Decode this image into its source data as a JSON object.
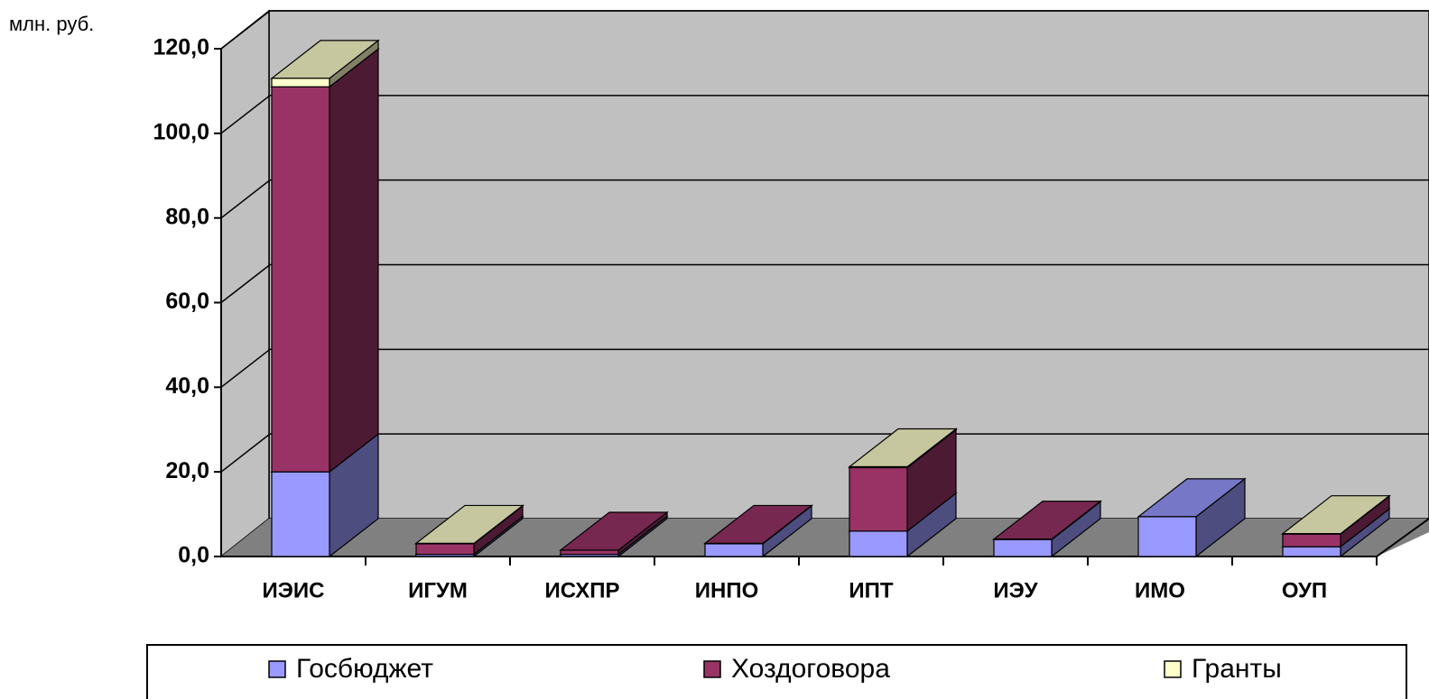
{
  "chart_data": {
    "type": "bar",
    "stacked": true,
    "three_d": true,
    "y_label": "млн. руб.",
    "categories": [
      "ИЭИС",
      "ИГУМ",
      "ИСХПР",
      "ИНПО",
      "ИПТ",
      "ИЭУ",
      "ИМО",
      "ОУП"
    ],
    "series": [
      {
        "name": "Госбюджет",
        "color": "#9999ff",
        "values": [
          20,
          0.5,
          0.5,
          3,
          6,
          4,
          9.4,
          2.3
        ]
      },
      {
        "name": "Хоздоговора",
        "color": "#993366",
        "values": [
          91,
          2.5,
          1,
          0.1,
          15,
          0.1,
          0,
          3
        ]
      },
      {
        "name": "Гранты",
        "color": "#ffffcc",
        "values": [
          2,
          0.1,
          0,
          0,
          0.2,
          0,
          0,
          0.1
        ]
      }
    ],
    "ylim": [
      0,
      120
    ],
    "yticks": [
      {
        "value": 0,
        "label": "0,0"
      },
      {
        "value": 20,
        "label": "20,0"
      },
      {
        "value": 40,
        "label": "40,0"
      },
      {
        "value": 60,
        "label": "60,0"
      },
      {
        "value": 80,
        "label": "80,0"
      },
      {
        "value": 100,
        "label": "100,0"
      },
      {
        "value": 120,
        "label": "120,0"
      }
    ],
    "grid": true,
    "legend": "bottom"
  }
}
